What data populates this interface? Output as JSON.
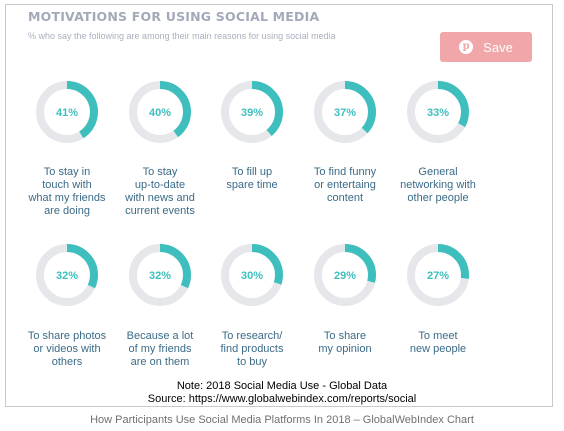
{
  "chart_data": {
    "type": "donut",
    "title": "MOTIVATIONS FOR USING SOCIAL MEDIA",
    "subtitle": "% who say the following are among their main reasons for using social media",
    "items": [
      {
        "value": 41,
        "label_text": "41%",
        "lines": [
          "To stay in",
          "touch with",
          "what my friends",
          "are doing"
        ]
      },
      {
        "value": 40,
        "label_text": "40%",
        "lines": [
          "To stay",
          "up-to-date",
          "with news and",
          "current events"
        ]
      },
      {
        "value": 39,
        "label_text": "39%",
        "lines": [
          "To fill up",
          "spare time"
        ]
      },
      {
        "value": 37,
        "label_text": "37%",
        "lines": [
          "To find funny",
          "or entertaing",
          "content"
        ]
      },
      {
        "value": 33,
        "label_text": "33%",
        "lines": [
          "General",
          "networking with",
          "other people"
        ]
      },
      {
        "value": 32,
        "label_text": "32%",
        "lines": [
          "To share photos",
          "or videos with",
          "others"
        ]
      },
      {
        "value": 32,
        "label_text": "32%",
        "lines": [
          "Because a lot",
          "of my friends",
          "are on them"
        ]
      },
      {
        "value": 30,
        "label_text": "30%",
        "lines": [
          "To research/",
          "find products",
          "to buy"
        ]
      },
      {
        "value": 29,
        "label_text": "29%",
        "lines": [
          "To share",
          "my opinion"
        ]
      },
      {
        "value": 27,
        "label_text": "27%",
        "lines": [
          "To meet",
          "new people"
        ]
      }
    ],
    "colors": {
      "filled": "#3ebfbe",
      "track": "#e6e7eb",
      "value_text": "#3ebfbe",
      "label_text": "#3b6b87"
    }
  },
  "save_button": {
    "label": "Save",
    "icon": "pinterest-icon",
    "color": "#f1a7aa"
  },
  "note": {
    "line1": "Note: 2018 Social Media Use - Global Data",
    "line2": "Source: https://www.globalwebindex.com/reports/social"
  },
  "caption": "How Participants Use Social Media Platforms In 2018 – GlobalWebIndex Chart"
}
